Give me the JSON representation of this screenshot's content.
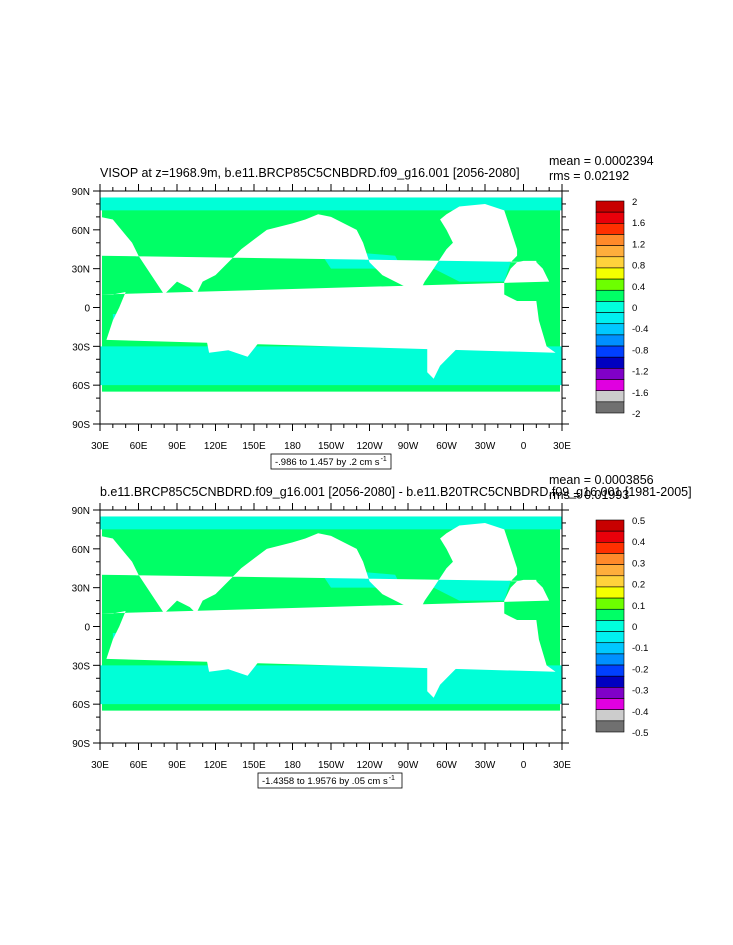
{
  "colors": {
    "land": "#ffffff",
    "ocean_zero": "#00ff66",
    "ocean_neg": "#00ffdd",
    "frame": "#000000"
  },
  "panels": [
    {
      "title": "VISOP at z=1968.9m, b.e11.BRCP85C5CNBDRD.f09_g16.001 [2056-2080]",
      "mean": "mean = 0.0002394",
      "rms": "rms = 0.02192",
      "range_label": "-.986 to 1.457 by .2 cm s",
      "range_sup": "-1"
    },
    {
      "title": "b.e11.BRCP85C5CNBDRD.f09_g16.001 [2056-2080] - b.e11.B20TRC5CNBDRD.f09_g16.001 [1981-2005]",
      "mean": "mean = 0.0003856",
      "rms": "rms = 0.01993",
      "range_label": "-1.4358 to 1.9576 by .05 cm s",
      "range_sup": "-1"
    }
  ],
  "chart_data": [
    {
      "type": "heatmap",
      "title": "VISOP at z=1968.9m, b.e11.BRCP85C5CNBDRD.f09_g16.001 [2056-2080]",
      "x_tick_labels": [
        "30E",
        "60E",
        "90E",
        "120E",
        "150E",
        "180",
        "150W",
        "120W",
        "90W",
        "60W",
        "30W",
        "0",
        "30E"
      ],
      "y_tick_labels": [
        "90N",
        "60N",
        "30N",
        "0",
        "30S",
        "60S",
        "90S"
      ],
      "xlim": [
        30,
        390
      ],
      "ylim": [
        -90,
        90
      ],
      "colorbar": {
        "labels": [
          "2",
          "1.6",
          "1.2",
          "0.8",
          "0.4",
          "0",
          "-0.4",
          "-0.8",
          "-1.2",
          "-1.6",
          "-2"
        ],
        "colors": [
          "#c80000",
          "#e8000a",
          "#ff3000",
          "#ff8a2a",
          "#ffae3c",
          "#ffd23c",
          "#f4ff00",
          "#6dff00",
          "#00ff66",
          "#00ffdd",
          "#00f0f0",
          "#00c8ff",
          "#0090ff",
          "#0040ff",
          "#0000c0",
          "#8000c8",
          "#e000e0",
          "#cccccc",
          "#707070"
        ]
      },
      "mean": 0.0002394,
      "rms": 0.02192,
      "units": "cm s-1"
    },
    {
      "type": "heatmap",
      "title": "b.e11.BRCP85C5CNBDRD.f09_g16.001 [2056-2080] - b.e11.B20TRC5CNBDRD.f09_g16.001 [1981-2005]",
      "x_tick_labels": [
        "30E",
        "60E",
        "90E",
        "120E",
        "150E",
        "180",
        "150W",
        "120W",
        "90W",
        "60W",
        "30W",
        "0",
        "30E"
      ],
      "y_tick_labels": [
        "90N",
        "60N",
        "30N",
        "0",
        "30S",
        "60S",
        "90S"
      ],
      "xlim": [
        30,
        390
      ],
      "ylim": [
        -90,
        90
      ],
      "colorbar": {
        "labels": [
          "0.5",
          "0.4",
          "0.3",
          "0.2",
          "0.1",
          "0",
          "-0.1",
          "-0.2",
          "-0.3",
          "-0.4",
          "-0.5"
        ],
        "colors": [
          "#c80000",
          "#e8000a",
          "#ff3000",
          "#ff8a2a",
          "#ffae3c",
          "#ffd23c",
          "#f4ff00",
          "#6dff00",
          "#00ff66",
          "#00ffdd",
          "#00f0f0",
          "#00c8ff",
          "#0090ff",
          "#0040ff",
          "#0000c0",
          "#8000c8",
          "#e000e0",
          "#cccccc",
          "#707070"
        ]
      },
      "mean": 0.0003856,
      "rms": 0.01993,
      "units": "cm s-1"
    }
  ]
}
